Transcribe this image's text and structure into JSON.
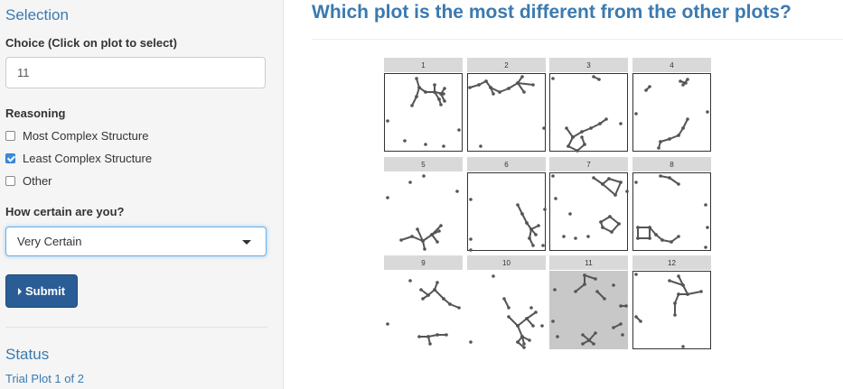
{
  "sidebar": {
    "selection_title": "Selection",
    "choice_label": "Choice (Click on plot to select)",
    "choice_value": "11",
    "reasoning_label": "Reasoning",
    "reasons": [
      {
        "label": "Most Complex Structure",
        "checked": false
      },
      {
        "label": "Least Complex Structure",
        "checked": true
      },
      {
        "label": "Other",
        "checked": false
      }
    ],
    "certainty_label": "How certain are you?",
    "certainty_value": "Very Certain",
    "submit_label": "Submit",
    "status_title": "Status",
    "status_text": "Trial Plot 1 of 2"
  },
  "main": {
    "title": "Which plot is the most different from the other plots?"
  },
  "lineup": {
    "selected_panel": "11",
    "panels": [
      {
        "label": "1"
      },
      {
        "label": "2"
      },
      {
        "label": "3"
      },
      {
        "label": "4"
      },
      {
        "label": "5"
      },
      {
        "label": "6"
      },
      {
        "label": "7"
      },
      {
        "label": "8"
      },
      {
        "label": "9"
      },
      {
        "label": "10"
      },
      {
        "label": "11"
      },
      {
        "label": "12"
      }
    ]
  },
  "colors": {
    "accent": "#3a7ab0",
    "button": "#2a5d96",
    "network": "#555555",
    "selected_panel_bg": "#c8c8c8"
  }
}
